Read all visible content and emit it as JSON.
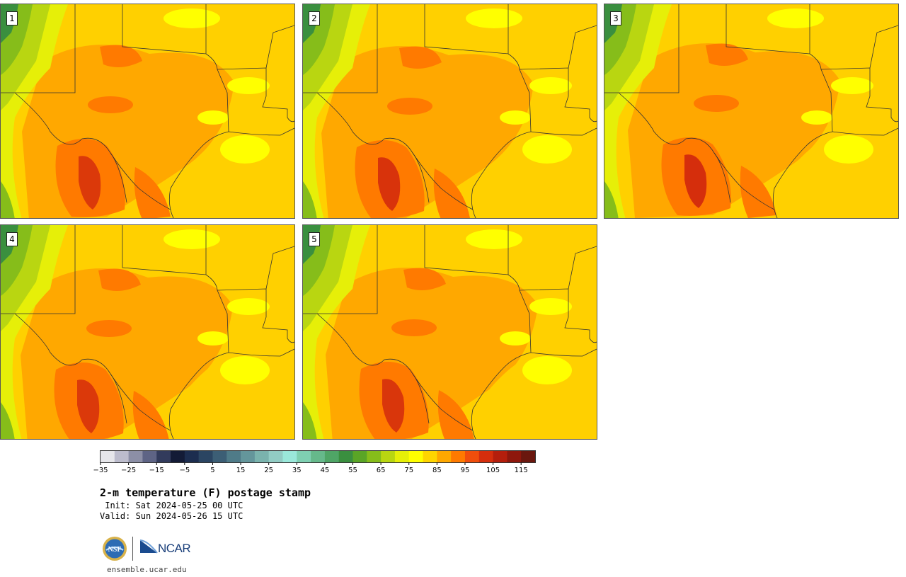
{
  "panels": [
    {
      "member": "1"
    },
    {
      "member": "2"
    },
    {
      "member": "3"
    },
    {
      "member": "4"
    },
    {
      "member": "5"
    }
  ],
  "colorbar": {
    "colors": [
      "#e6e6ea",
      "#bcbccc",
      "#8c8fa6",
      "#5e6485",
      "#323b5c",
      "#131b36",
      "#1c2d4f",
      "#2b4562",
      "#3c5e75",
      "#4f7b88",
      "#64969b",
      "#7ab3ad",
      "#92ccc4",
      "#9ae8da",
      "#7fd0b2",
      "#66b98b",
      "#4fa566",
      "#3a8f3f",
      "#5aa526",
      "#86bd1a",
      "#b9d611",
      "#e6ef08",
      "#ffff00",
      "#ffd500",
      "#ffa800",
      "#ff7a00",
      "#f04e0c",
      "#d52e0c",
      "#b41e0c",
      "#8e170c",
      "#6a170e"
    ],
    "ticks": [
      "−35",
      "−25",
      "−15",
      "−5",
      "5",
      "15",
      "25",
      "35",
      "45",
      "55",
      "65",
      "75",
      "85",
      "95",
      "105",
      "115"
    ]
  },
  "title": "2-m temperature (F) postage stamp",
  "init": " Init: Sat 2024-05-25 00 UTC",
  "valid": "Valid: Sun 2024-05-26 15 UTC",
  "logos": {
    "nsf": "NSF",
    "ncar": "NCAR"
  },
  "site": "ensemble.ucar.edu"
}
